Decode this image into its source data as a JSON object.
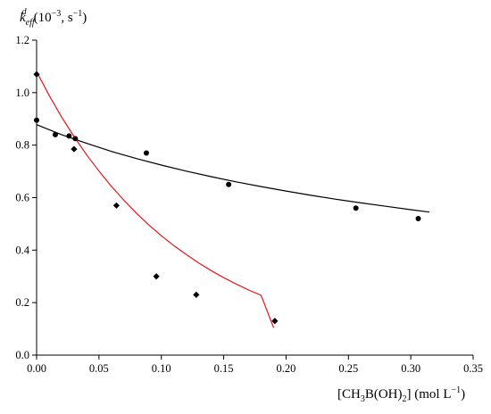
{
  "chart_data": {
    "type": "scatter",
    "xlim": [
      0,
      0.35
    ],
    "ylim": [
      0,
      1.2
    ],
    "x_ticks": [
      0.0,
      0.05,
      0.1,
      0.15,
      0.2,
      0.25,
      0.3,
      0.35
    ],
    "y_ticks": [
      0.0,
      0.2,
      0.4,
      0.6,
      0.8,
      1.0,
      1.2
    ],
    "x_tick_labels": [
      "0.00",
      "0.05",
      "0.10",
      "0.15",
      "0.20",
      "0.25",
      "0.30",
      "0.35"
    ],
    "y_tick_labels": [
      "0.0",
      "0.2",
      "0.4",
      "0.6",
      "0.8",
      "1.0",
      "1.2"
    ],
    "ylabel": "k_eff^d (10^-3, s^-1)",
    "xlabel": "[CH3B(OH)2] (mol L^-1)",
    "grid": false,
    "series": [
      {
        "marker": "circle",
        "color": "#000000",
        "points": [
          [
            0.0,
            0.895
          ],
          [
            0.015,
            0.84
          ],
          [
            0.026,
            0.835
          ],
          [
            0.031,
            0.825
          ],
          [
            0.088,
            0.77
          ],
          [
            0.154,
            0.65
          ],
          [
            0.256,
            0.56
          ],
          [
            0.306,
            0.52
          ]
        ],
        "fit": {
          "color": "#000000",
          "x": [
            0.0,
            0.02,
            0.04,
            0.06,
            0.08,
            0.1,
            0.12,
            0.14,
            0.16,
            0.18,
            0.2,
            0.22,
            0.24,
            0.26,
            0.28,
            0.3,
            0.315
          ],
          "y": [
            0.878,
            0.84,
            0.807,
            0.776,
            0.749,
            0.724,
            0.701,
            0.68,
            0.66,
            0.642,
            0.625,
            0.609,
            0.594,
            0.58,
            0.567,
            0.554,
            0.545
          ]
        }
      },
      {
        "marker": "diamond",
        "color": "#000000",
        "points": [
          [
            0.0,
            1.07
          ],
          [
            0.03,
            0.785
          ],
          [
            0.064,
            0.57
          ],
          [
            0.096,
            0.3
          ],
          [
            0.128,
            0.23
          ],
          [
            0.191,
            0.13
          ]
        ],
        "fit": {
          "color": "#e8141b",
          "x": [
            0.0,
            0.01,
            0.02,
            0.03,
            0.04,
            0.05,
            0.06,
            0.07,
            0.08,
            0.09,
            0.1,
            0.11,
            0.12,
            0.13,
            0.14,
            0.15,
            0.16,
            0.17,
            0.18,
            0.19
          ],
          "y": [
            1.08,
            0.99,
            0.908,
            0.833,
            0.764,
            0.701,
            0.643,
            0.59,
            0.541,
            0.496,
            0.455,
            0.417,
            0.383,
            0.351,
            0.322,
            0.295,
            0.271,
            0.248,
            0.228,
            0.104
          ]
        }
      }
    ]
  }
}
